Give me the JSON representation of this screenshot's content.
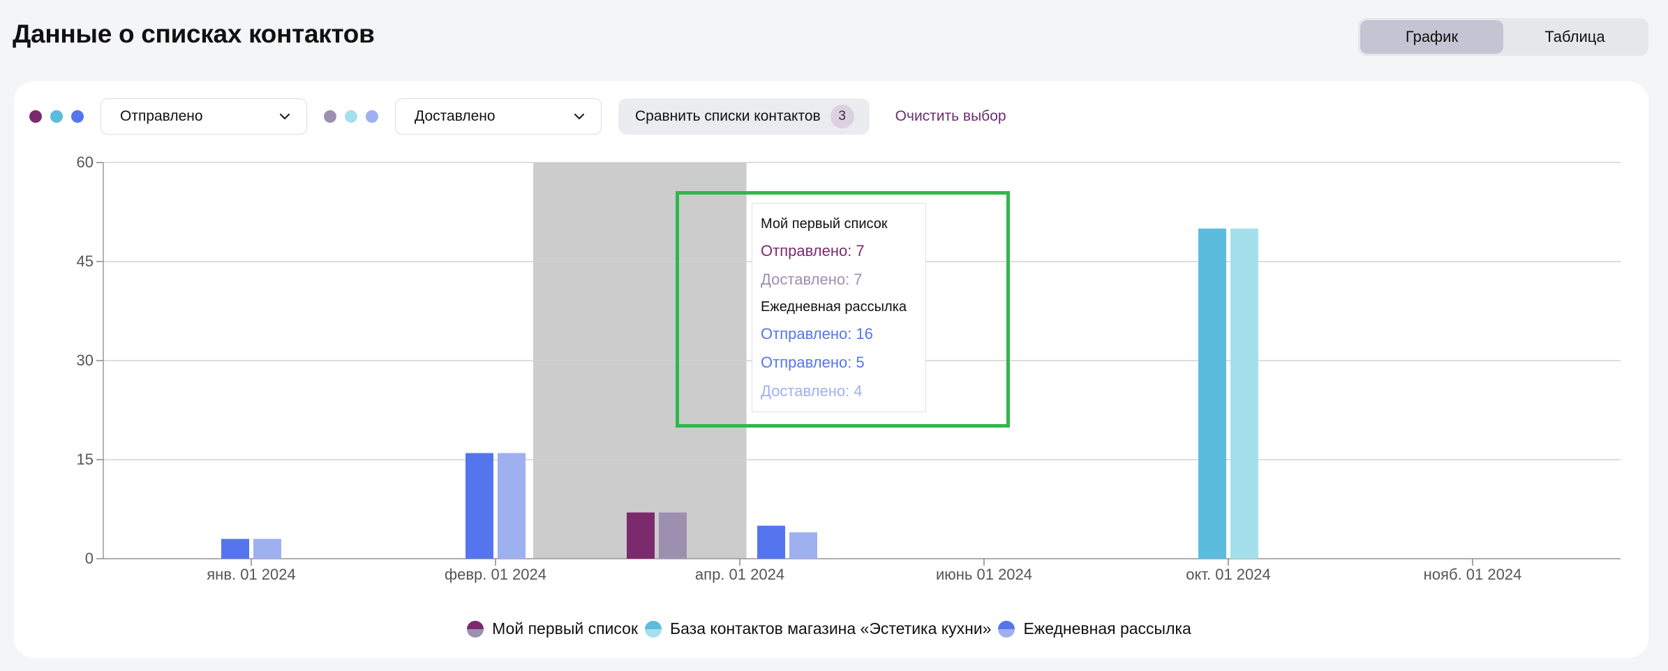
{
  "page": {
    "title": "Данные о списках контактов",
    "view_toggle": {
      "chart_label": "График",
      "table_label": "Таблица",
      "active": "chart"
    }
  },
  "filters": {
    "primary_metric": "Отправлено",
    "primary_dot_colors": [
      "#7b2a6e",
      "#5bbcde",
      "#5575ee"
    ],
    "secondary_metric": "Доставлено",
    "secondary_dot_colors": [
      "#9d8fb0",
      "#a4dfec",
      "#9fb0f0"
    ],
    "compare_label": "Сравнить списки контактов",
    "compare_count": "3",
    "clear_label": "Очистить выбор"
  },
  "colors": {
    "accent_purple": "#6b2e70",
    "highlight_green": "#2fb84a",
    "hover_band": "#cccccc"
  },
  "chart_data": {
    "type": "bar",
    "ylim": [
      0,
      60
    ],
    "yticks": [
      "0",
      "15",
      "30",
      "45",
      "60"
    ],
    "xticks": [
      "янв. 01 2024",
      "февр. 01 2024",
      "апр. 01 2024",
      "июнь 01 2024",
      "окт. 01 2024",
      "нояб. 01 2024"
    ],
    "grid": true,
    "legend_position": "bottom-center",
    "series": [
      {
        "name": "Мой первый список",
        "color_sent": "#7b2a6e",
        "color_delivered": "#9d8fb0",
        "points": [
          {
            "date": "2024-03-18",
            "sent": 7,
            "delivered": 7
          }
        ]
      },
      {
        "name": "База контактов магазина «Эстетика кухни»",
        "color_sent": "#5bbcde",
        "color_delivered": "#a4dfec",
        "points": [
          {
            "date": "2024-10-01",
            "sent": 50,
            "delivered": 50
          }
        ]
      },
      {
        "name": "Ежедневная рассылка",
        "color_sent": "#5575ee",
        "color_delivered": "#9fb0f0",
        "points": [
          {
            "date": "2024-01-01",
            "sent": 3,
            "delivered": 3
          },
          {
            "date": "2024-02-01",
            "sent": 16,
            "delivered": 16
          },
          {
            "date": "2024-04-01",
            "sent": 5,
            "delivered": 4
          }
        ]
      }
    ],
    "tooltip": {
      "groups": [
        {
          "title": "Мой первый список",
          "lines": [
            {
              "text": "Отправлено: 7",
              "color": "#7b2a6e"
            },
            {
              "text": "Доставлено: 7",
              "color": "#9d8fb0"
            }
          ]
        },
        {
          "title": "Ежедневная рассылка",
          "lines": [
            {
              "text": "Отправлено: 16",
              "color": "#5575ee"
            },
            {
              "text": "Отправлено: 5",
              "color": "#5575ee"
            },
            {
              "text": "Доставлено: 4",
              "color": "#9fb0f0"
            }
          ]
        }
      ]
    }
  }
}
